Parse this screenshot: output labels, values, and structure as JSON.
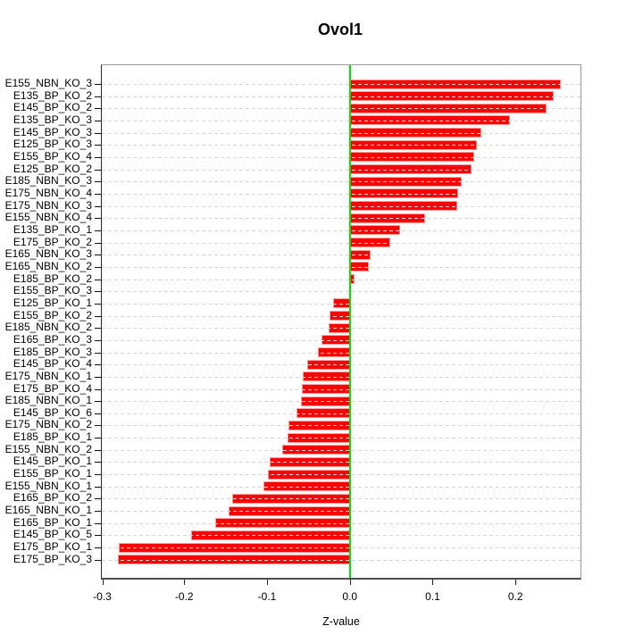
{
  "chart_data": {
    "type": "bar",
    "orientation": "horizontal",
    "title": "Ovol1",
    "xlabel": "Z-value",
    "categories": [
      "E155_NBN_KO_3",
      "E135_BP_KO_2",
      "E145_BP_KO_2",
      "E135_BP_KO_3",
      "E145_BP_KO_3",
      "E125_BP_KO_3",
      "E155_BP_KO_4",
      "E125_BP_KO_2",
      "E185_NBN_KO_3",
      "E175_NBN_KO_4",
      "E175_NBN_KO_3",
      "E155_NBN_KO_4",
      "E135_BP_KO_1",
      "E175_BP_KO_2",
      "E165_NBN_KO_3",
      "E165_NBN_KO_2",
      "E185_BP_KO_2",
      "E155_BP_KO_3",
      "E125_BP_KO_1",
      "E155_BP_KO_2",
      "E185_NBN_KO_2",
      "E165_BP_KO_3",
      "E185_BP_KO_3",
      "E145_BP_KO_4",
      "E175_NBN_KO_1",
      "E175_BP_KO_4",
      "E185_NBN_KO_1",
      "E145_BP_KO_6",
      "E175_NBN_KO_2",
      "E185_BP_KO_1",
      "E155_NBN_KO_2",
      "E145_BP_KO_1",
      "E155_BP_KO_1",
      "E155_NBN_KO_1",
      "E165_BP_KO_2",
      "E165_NBN_KO_1",
      "E165_BP_KO_1",
      "E145_BP_KO_5",
      "E175_BP_KO_1",
      "E175_BP_KO_3"
    ],
    "values": [
      0.255,
      0.246,
      0.237,
      0.193,
      0.159,
      0.153,
      0.15,
      0.147,
      0.135,
      0.131,
      0.13,
      0.091,
      0.061,
      0.049,
      0.025,
      0.023,
      0.006,
      0.0,
      -0.02,
      -0.025,
      -0.026,
      -0.034,
      -0.039,
      -0.052,
      -0.057,
      -0.058,
      -0.059,
      -0.064,
      -0.074,
      -0.075,
      -0.082,
      -0.097,
      -0.099,
      -0.104,
      -0.142,
      -0.146,
      -0.163,
      -0.192,
      -0.279,
      -0.28
    ],
    "xlim": [
      -0.2995,
      0.2785
    ],
    "x_ticks": [
      -0.3,
      -0.2,
      -0.1,
      0.0,
      0.1,
      0.2
    ],
    "x_tick_labels": [
      "-0.3",
      "-0.2",
      "-0.1",
      "0.0",
      "0.1",
      "0.2"
    ],
    "grid": true,
    "grid_style": "dashed",
    "zero_line": true,
    "legend": null,
    "colors": {
      "bar": "#fe0000",
      "bar_border": "#ff9e9e",
      "zero_line": "#00e400",
      "grid": "#d8d8d8",
      "box": "#9a9a9a",
      "axis": "#222222",
      "text": "#000000"
    }
  }
}
